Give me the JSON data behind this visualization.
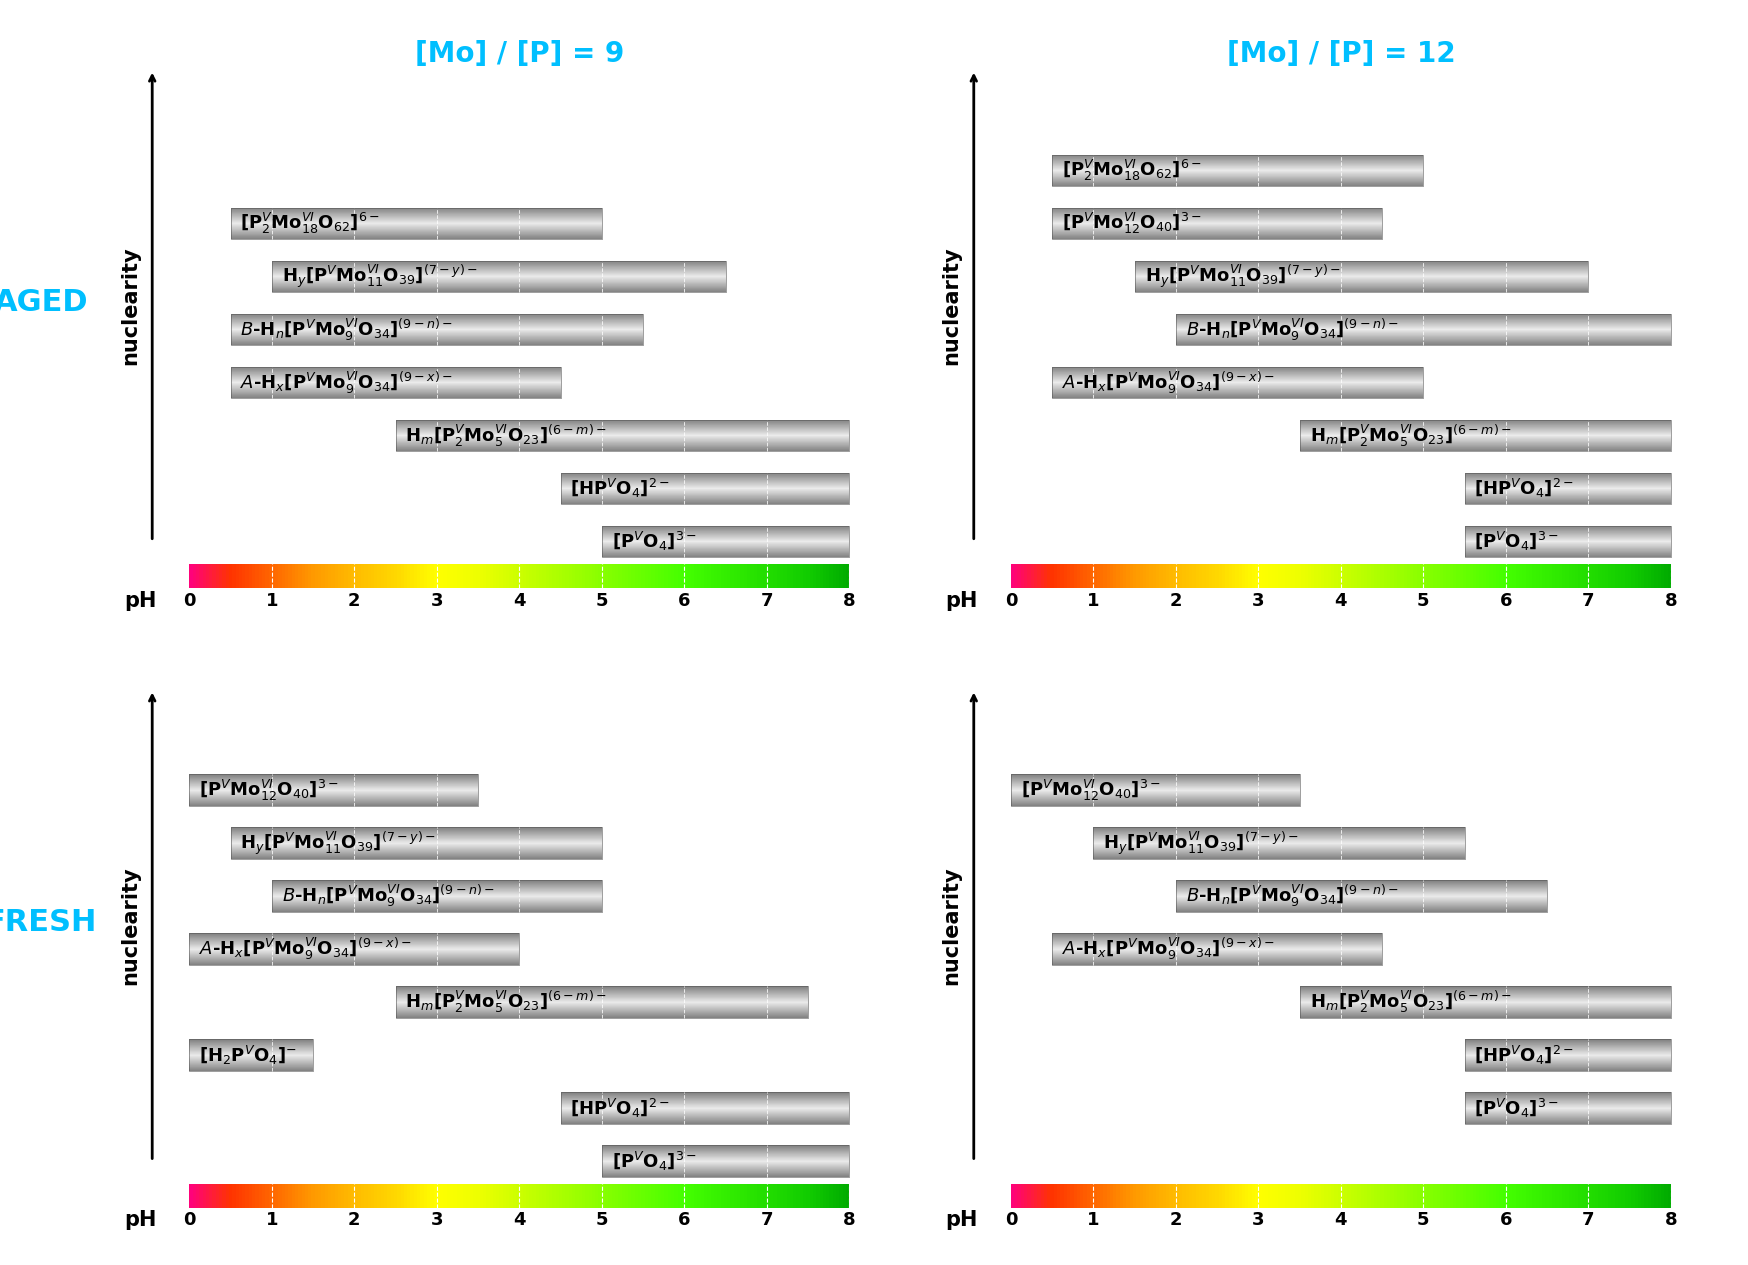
{
  "panels": [
    {
      "title": "[Mo] / [P] = 9",
      "label": "AGED",
      "row": 0,
      "col": 0,
      "show_label": true,
      "bars": [
        {
          "xmin": 0.5,
          "xmax": 5.0,
          "y": 7,
          "label": "[P$^{V}_{2}$Mo$^{VI}_{18}$O$_{62}$]$^{6-}$"
        },
        {
          "xmin": 1.0,
          "xmax": 6.5,
          "y": 6,
          "label": "H$_{y}$[P$^{V}$Mo$^{VI}_{11}$O$_{39}$]$^{(7-y)-}$"
        },
        {
          "xmin": 0.5,
          "xmax": 5.5,
          "y": 5,
          "label": "$B$-H$_{n}$[P$^{V}$Mo$^{VI}_{9}$O$_{34}$]$^{(9-n)-}$"
        },
        {
          "xmin": 0.5,
          "xmax": 4.5,
          "y": 4,
          "label": "$A$-H$_{x}$[P$^{V}$Mo$^{VI}_{9}$O$_{34}$]$^{(9-x)-}$"
        },
        {
          "xmin": 2.5,
          "xmax": 8.0,
          "y": 3,
          "label": "H$_{m}$[P$^{V}_{2}$Mo$^{VI}_{5}$O$_{23}$]$^{(6-m)-}$"
        },
        {
          "xmin": 4.5,
          "xmax": 8.0,
          "y": 2,
          "label": "[HP$^{V}$O$_{4}$]$^{2-}$"
        },
        {
          "xmin": 5.0,
          "xmax": 8.0,
          "y": 1,
          "label": "[P$^{V}$O$_{4}$]$^{3-}$"
        }
      ]
    },
    {
      "title": "[Mo] / [P] = 12",
      "label": "AGED",
      "row": 0,
      "col": 1,
      "show_label": false,
      "bars": [
        {
          "xmin": 0.5,
          "xmax": 5.0,
          "y": 8,
          "label": "[P$^{V}_{2}$Mo$^{VI}_{18}$O$_{62}$]$^{6-}$"
        },
        {
          "xmin": 0.5,
          "xmax": 4.5,
          "y": 7,
          "label": "[P$^{V}$Mo$^{VI}_{12}$O$_{40}$]$^{3-}$"
        },
        {
          "xmin": 1.5,
          "xmax": 7.0,
          "y": 6,
          "label": "H$_{y}$[P$^{V}$Mo$^{VI}_{11}$O$_{39}$]$^{(7-y)-}$"
        },
        {
          "xmin": 2.0,
          "xmax": 8.0,
          "y": 5,
          "label": "$B$-H$_{n}$[P$^{V}$Mo$^{VI}_{9}$O$_{34}$]$^{(9-n)-}$"
        },
        {
          "xmin": 0.5,
          "xmax": 5.0,
          "y": 4,
          "label": "$A$-H$_{x}$[P$^{V}$Mo$^{VI}_{9}$O$_{34}$]$^{(9-x)-}$"
        },
        {
          "xmin": 3.5,
          "xmax": 8.0,
          "y": 3,
          "label": "H$_{m}$[P$^{V}_{2}$Mo$^{VI}_{5}$O$_{23}$]$^{(6-m)-}$"
        },
        {
          "xmin": 5.5,
          "xmax": 8.0,
          "y": 2,
          "label": "[HP$^{V}$O$_{4}$]$^{2-}$"
        },
        {
          "xmin": 5.5,
          "xmax": 8.0,
          "y": 1,
          "label": "[P$^{V}$O$_{4}$]$^{3-}$"
        }
      ]
    },
    {
      "title": "",
      "label": "FRESH",
      "row": 1,
      "col": 0,
      "show_label": true,
      "bars": [
        {
          "xmin": 0.0,
          "xmax": 3.5,
          "y": 8,
          "label": "[P$^{V}$Mo$^{VI}_{12}$O$_{40}$]$^{3-}$"
        },
        {
          "xmin": 0.5,
          "xmax": 5.0,
          "y": 7,
          "label": "H$_{y}$[P$^{V}$Mo$^{VI}_{11}$O$_{39}$]$^{(7-y)-}$"
        },
        {
          "xmin": 1.0,
          "xmax": 5.0,
          "y": 6,
          "label": "$B$-H$_{n}$[P$^{V}$Mo$^{VI}_{9}$O$_{34}$]$^{(9-n)-}$"
        },
        {
          "xmin": 0.0,
          "xmax": 4.0,
          "y": 5,
          "label": "$A$-H$_{x}$[P$^{V}$Mo$^{VI}_{9}$O$_{34}$]$^{(9-x)-}$"
        },
        {
          "xmin": 2.5,
          "xmax": 7.5,
          "y": 4,
          "label": "H$_{m}$[P$^{V}_{2}$Mo$^{VI}_{5}$O$_{23}$]$^{(6-m)-}$"
        },
        {
          "xmin": 0.0,
          "xmax": 1.5,
          "y": 3,
          "label": "[H$_{2}$P$^{V}$O$_{4}$]$^{-}$"
        },
        {
          "xmin": 4.5,
          "xmax": 8.0,
          "y": 2,
          "label": "[HP$^{V}$O$_{4}$]$^{2-}$"
        },
        {
          "xmin": 5.0,
          "xmax": 8.0,
          "y": 1,
          "label": "[P$^{V}$O$_{4}$]$^{3-}$"
        }
      ]
    },
    {
      "title": "",
      "label": "FRESH",
      "row": 1,
      "col": 1,
      "show_label": false,
      "bars": [
        {
          "xmin": 0.0,
          "xmax": 3.5,
          "y": 8,
          "label": "[P$^{V}$Mo$^{VI}_{12}$O$_{40}$]$^{3-}$"
        },
        {
          "xmin": 1.0,
          "xmax": 5.5,
          "y": 7,
          "label": "H$_{y}$[P$^{V}$Mo$^{VI}_{11}$O$_{39}$]$^{(7-y)-}$"
        },
        {
          "xmin": 2.0,
          "xmax": 6.5,
          "y": 6,
          "label": "$B$-H$_{n}$[P$^{V}$Mo$^{VI}_{9}$O$_{34}$]$^{(9-n)-}$"
        },
        {
          "xmin": 0.5,
          "xmax": 4.5,
          "y": 5,
          "label": "$A$-H$_{x}$[P$^{V}$Mo$^{VI}_{9}$O$_{34}$]$^{(9-x)-}$"
        },
        {
          "xmin": 3.5,
          "xmax": 8.0,
          "y": 4,
          "label": "H$_{m}$[P$^{V}_{2}$Mo$^{VI}_{5}$O$_{23}$]$^{(6-m)-}$"
        },
        {
          "xmin": 5.5,
          "xmax": 8.0,
          "y": 3,
          "label": "[HP$^{V}$O$_{4}$]$^{2-}$"
        },
        {
          "xmin": 5.5,
          "xmax": 8.0,
          "y": 2,
          "label": "[P$^{V}$O$_{4}$]$^{3-}$"
        }
      ]
    }
  ],
  "pH_color_stops": [
    [
      0.0,
      "#FF007F"
    ],
    [
      0.5,
      "#FF3300"
    ],
    [
      1.0,
      "#FF6600"
    ],
    [
      1.5,
      "#FF9900"
    ],
    [
      2.0,
      "#FFBB00"
    ],
    [
      2.5,
      "#FFD700"
    ],
    [
      3.0,
      "#FFFF00"
    ],
    [
      3.5,
      "#EEFF00"
    ],
    [
      4.0,
      "#CCFF00"
    ],
    [
      4.5,
      "#AAFF00"
    ],
    [
      5.0,
      "#88FF00"
    ],
    [
      5.5,
      "#66FF00"
    ],
    [
      6.0,
      "#44FF00"
    ],
    [
      6.5,
      "#33EE00"
    ],
    [
      7.0,
      "#22DD00"
    ],
    [
      7.5,
      "#11CC00"
    ],
    [
      8.0,
      "#00AA00"
    ]
  ],
  "title_color": "#00BFFF",
  "label_color": "#00BFFF",
  "background_color": "#ffffff",
  "bar_height": 0.6,
  "bar_fontsize": 13,
  "pH_bar_height": 0.45,
  "pH_label_fontsize": 15,
  "tick_fontsize": 13,
  "nuclearity_fontsize": 15,
  "label_fontsize": 22,
  "title_fontsize": 20
}
